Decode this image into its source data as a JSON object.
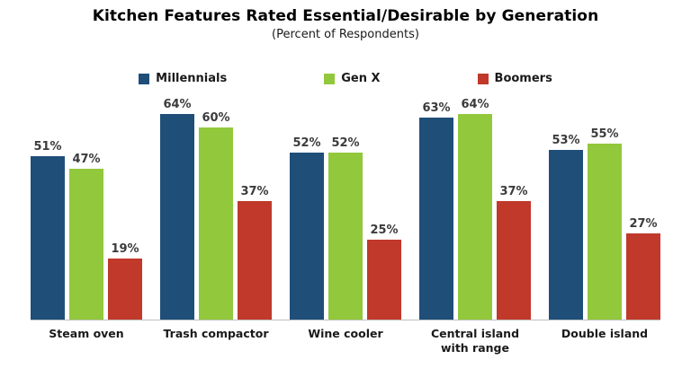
{
  "chart": {
    "title": "Kitchen Features Rated Essential/Desirable by Generation",
    "subtitle": "(Percent of Respondents)"
  },
  "chart_data": {
    "type": "bar",
    "title": "Kitchen Features Rated Essential/Desirable by Generation",
    "subtitle": "(Percent of Respondents)",
    "categories": [
      "Steam oven",
      "Trash compactor",
      "Wine cooler",
      "Central island with range",
      "Double island"
    ],
    "series": [
      {
        "name": "Millennials",
        "color": "#1F4E79",
        "values": [
          51,
          64,
          52,
          63,
          53
        ]
      },
      {
        "name": "Gen X",
        "color": "#92C83C",
        "values": [
          47,
          60,
          52,
          64,
          55
        ]
      },
      {
        "name": "Boomers",
        "color": "#C0392B",
        "values": [
          19,
          37,
          25,
          37,
          27
        ]
      }
    ],
    "value_suffix": "%",
    "ylim": [
      0,
      70
    ],
    "grid": false,
    "legend_position": "top",
    "xlabel": "",
    "ylabel": ""
  }
}
